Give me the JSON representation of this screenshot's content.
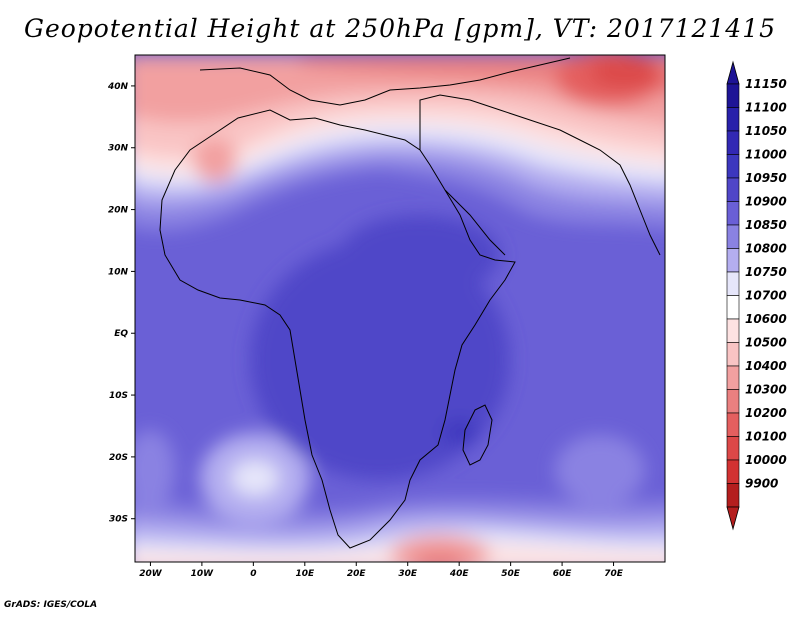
{
  "title": "Geopotential Height at 250hPa [gpm], VT: 2017121415",
  "credit": "GrADS: IGES/COLA",
  "map": {
    "lon_range": [
      -23,
      80
    ],
    "lat_range": [
      -37,
      45
    ],
    "lat_ticks": [
      {
        "lat": 40,
        "label": "40N"
      },
      {
        "lat": 30,
        "label": "30N"
      },
      {
        "lat": 20,
        "label": "20N"
      },
      {
        "lat": 10,
        "label": "10N"
      },
      {
        "lat": 0,
        "label": "EQ"
      },
      {
        "lat": -10,
        "label": "10S"
      },
      {
        "lat": -20,
        "label": "20S"
      },
      {
        "lat": -30,
        "label": "30S"
      }
    ],
    "lon_ticks": [
      {
        "lon": -20,
        "label": "20W"
      },
      {
        "lon": -10,
        "label": "10W"
      },
      {
        "lon": 0,
        "label": "0"
      },
      {
        "lon": 10,
        "label": "10E"
      },
      {
        "lon": 20,
        "label": "20E"
      },
      {
        "lon": 30,
        "label": "30E"
      },
      {
        "lon": 40,
        "label": "40E"
      },
      {
        "lon": 50,
        "label": "50E"
      },
      {
        "lon": 60,
        "label": "60E"
      },
      {
        "lon": 70,
        "label": "70E"
      }
    ]
  },
  "colorbar": {
    "levels": [
      {
        "label": "11150",
        "color": "#1e1496"
      },
      {
        "label": "11100",
        "color": "#2820aa"
      },
      {
        "label": "11050",
        "color": "#3228b4"
      },
      {
        "label": "11000",
        "color": "#3c37be"
      },
      {
        "label": "10950",
        "color": "#5046c8"
      },
      {
        "label": "10900",
        "color": "#6a5fd6"
      },
      {
        "label": "10850",
        "color": "#8a82e2"
      },
      {
        "label": "10800",
        "color": "#b4aef0"
      },
      {
        "label": "10750",
        "color": "#e6e6fa"
      },
      {
        "label": "10700",
        "color": "#ffffff"
      },
      {
        "label": "10600",
        "color": "#fde2e2"
      },
      {
        "label": "10500",
        "color": "#f9c4c4"
      },
      {
        "label": "10400",
        "color": "#f2a0a0"
      },
      {
        "label": "10300",
        "color": "#ea8080"
      },
      {
        "label": "10200",
        "color": "#e45f5f"
      },
      {
        "label": "10100",
        "color": "#dc4848"
      },
      {
        "label": "10000",
        "color": "#d23232"
      },
      {
        "label": "9900",
        "color": "#b41e1e"
      }
    ],
    "top_arrow_color": "#1e1496",
    "bottom_arrow_color": "#b41e1e"
  }
}
